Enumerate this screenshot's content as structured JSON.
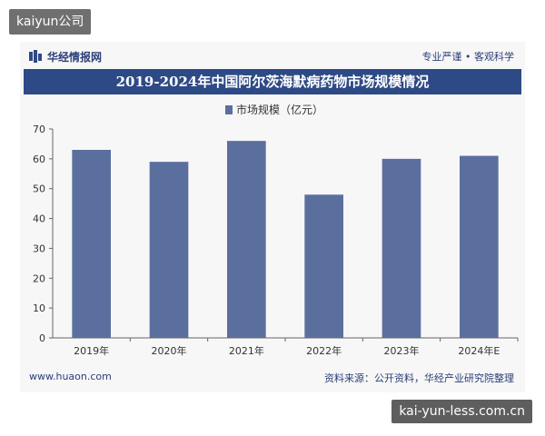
{
  "overlays": {
    "top_left_label": "kaiyun公司",
    "bottom_right_label": "kai-yun-less.com.cn"
  },
  "header": {
    "brand": "华经情报网",
    "tagline": "专业严谨 • 客观科学"
  },
  "footer": {
    "website": "www.huaon.com",
    "source": "资料来源：公开资料，华经产业研究院整理"
  },
  "colors": {
    "bar": "#5b6f9f",
    "title_bar": "#2e4a86",
    "brand": "#2b3f78"
  },
  "chart_data": {
    "type": "bar",
    "title": "2019-2024年中国阿尔茨海默病药物市场规模情况",
    "categories": [
      "2019年",
      "2020年",
      "2021年",
      "2022年",
      "2023年",
      "2024年E"
    ],
    "series": [
      {
        "name": "市场规模（亿元）",
        "values": [
          63,
          59,
          66,
          48,
          60,
          61
        ]
      }
    ],
    "ylim": [
      0,
      70
    ],
    "yticks": [
      0,
      10,
      20,
      30,
      40,
      50,
      60,
      70
    ],
    "legend": "top-center",
    "grid": false,
    "xlabel": "",
    "ylabel": ""
  }
}
